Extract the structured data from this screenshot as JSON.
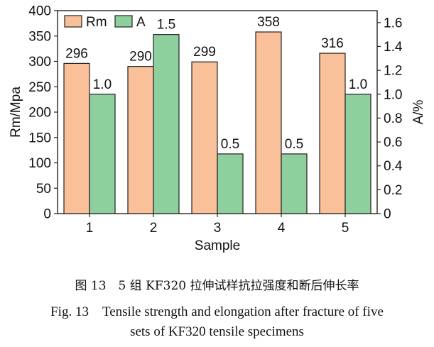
{
  "chart_data": {
    "type": "bar",
    "categories": [
      "1",
      "2",
      "3",
      "4",
      "5"
    ],
    "series": [
      {
        "name": "Rm",
        "values": [
          296,
          290,
          299,
          358,
          316
        ],
        "axis": "left",
        "color": "#F9C09A"
      },
      {
        "name": "A",
        "values": [
          1.0,
          1.5,
          0.5,
          0.5,
          1.0
        ],
        "axis": "right",
        "color": "#8ECF9E"
      }
    ],
    "data_labels": {
      "Rm": [
        "296",
        "290",
        "299",
        "358",
        "316"
      ],
      "A": [
        "1.0",
        "1.5",
        "0.5",
        "0.5",
        "1.0"
      ]
    },
    "xlabel": "Sample",
    "ylabel_left": "Rm/Mpa",
    "ylabel_right": "A/%",
    "ylim_left": [
      0,
      400
    ],
    "ylim_right": [
      0,
      1.7
    ],
    "yticks_left": [
      "0",
      "50",
      "100",
      "150",
      "200",
      "250",
      "300",
      "350",
      "400"
    ],
    "yticks_right": [
      "0",
      "0.2",
      "0.4",
      "0.6",
      "0.8",
      "1.0",
      "1.2",
      "1.4",
      "1.6"
    ],
    "grid": false,
    "legend_position": "top-left"
  },
  "caption": {
    "cn": "图 13　5 组 KF320 拉伸试样抗拉强度和断后伸长率",
    "en_line1": "Fig. 13　Tensile strength and elongation after fracture of five",
    "en_line2": "sets of KF320 tensile specimens"
  }
}
